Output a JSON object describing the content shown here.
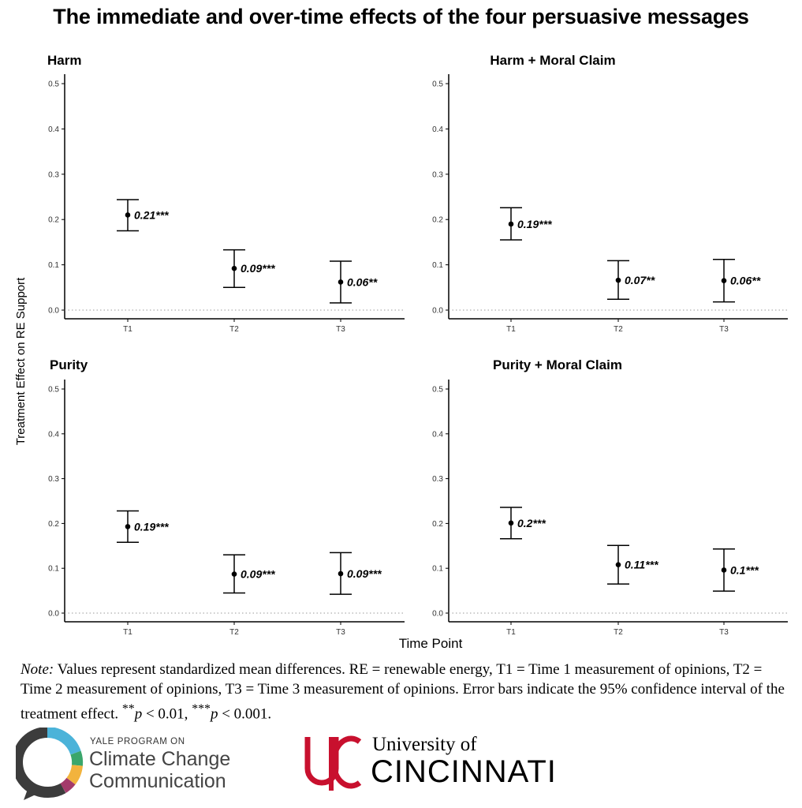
{
  "title": "The immediate and over-time effects of the four persuasive messages",
  "ylabel": "Treatment Effect on RE Support",
  "xlabel": "Time Point",
  "note": {
    "lead": "Note:",
    "text": "Values represent standardized mean differences. RE = renewable energy, T1 = Time 1 measurement of opinions, T2 = Time 2 measurement of opinions, T3 = Time 3 measurement of opinions. Error bars indicate the 95% confidence interval of the treatment effect.",
    "p1_stars": "**",
    "p1_var": "p",
    "p1_rest": " < 0.01, ",
    "p2_stars": "***",
    "p2_var": "p",
    "p2_rest": " < 0.001."
  },
  "logos": {
    "yale_small": "YALE PROGRAM ON",
    "yale_line1": "Climate Change",
    "yale_line2": "Communication",
    "uc_line1": "University of",
    "uc_line2": "CINCINNATI"
  },
  "colors": {
    "uc_red": "#c8102e",
    "yale_blue": "#4bb3d9",
    "yale_green": "#3aa66b",
    "yale_yellow": "#f2b33d",
    "yale_magenta": "#a33a6b",
    "yale_gray": "#3c3c3c"
  },
  "chart_data": [
    {
      "type": "scatter",
      "title": "Harm",
      "categories": [
        "T1",
        "T2",
        "T3"
      ],
      "values": [
        0.21,
        0.092,
        0.062
      ],
      "ci_low": [
        0.175,
        0.05,
        0.016
      ],
      "ci_high": [
        0.244,
        0.133,
        0.108
      ],
      "labels": [
        "0.21***",
        "0.09***",
        "0.06**"
      ],
      "ylim": [
        0,
        0.5
      ],
      "yticks": [
        "0.0",
        "0.1",
        "0.2",
        "0.3",
        "0.4",
        "0.5"
      ],
      "reference_line": 0
    },
    {
      "type": "scatter",
      "title": "Harm + Moral Claim",
      "categories": [
        "T1",
        "T2",
        "T3"
      ],
      "values": [
        0.19,
        0.066,
        0.065
      ],
      "ci_low": [
        0.155,
        0.024,
        0.018
      ],
      "ci_high": [
        0.226,
        0.109,
        0.112
      ],
      "labels": [
        "0.19***",
        "0.07**",
        "0.06**"
      ],
      "ylim": [
        0,
        0.5
      ],
      "yticks": [
        "0.0",
        "0.1",
        "0.2",
        "0.3",
        "0.4",
        "0.5"
      ],
      "reference_line": 0
    },
    {
      "type": "scatter",
      "title": "Purity",
      "categories": [
        "T1",
        "T2",
        "T3"
      ],
      "values": [
        0.193,
        0.087,
        0.088
      ],
      "ci_low": [
        0.158,
        0.045,
        0.042
      ],
      "ci_high": [
        0.228,
        0.13,
        0.135
      ],
      "labels": [
        "0.19***",
        "0.09***",
        "0.09***"
      ],
      "ylim": [
        0,
        0.5
      ],
      "yticks": [
        "0.0",
        "0.1",
        "0.2",
        "0.3",
        "0.4",
        "0.5"
      ],
      "reference_line": 0
    },
    {
      "type": "scatter",
      "title": "Purity + Moral Claim",
      "categories": [
        "T1",
        "T2",
        "T3"
      ],
      "values": [
        0.201,
        0.108,
        0.096
      ],
      "ci_low": [
        0.166,
        0.065,
        0.049
      ],
      "ci_high": [
        0.236,
        0.151,
        0.143
      ],
      "labels": [
        "0.2***",
        "0.11***",
        "0.1***"
      ],
      "ylim": [
        0,
        0.5
      ],
      "yticks": [
        "0.0",
        "0.1",
        "0.2",
        "0.3",
        "0.4",
        "0.5"
      ],
      "reference_line": 0
    }
  ]
}
